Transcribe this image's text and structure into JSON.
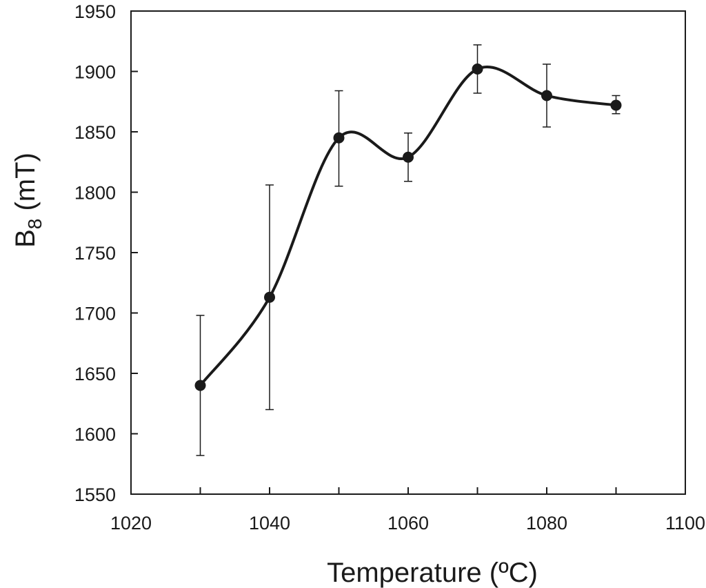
{
  "chart_data": {
    "type": "line",
    "title": "",
    "xlabel": "Temperature (ºC)",
    "ylabel_main": "B",
    "ylabel_sub": "8",
    "ylabel_unit": " (mT)",
    "xlim": [
      1020,
      1100
    ],
    "ylim": [
      1550,
      1950
    ],
    "xticks": [
      1020,
      1040,
      1060,
      1080,
      1100
    ],
    "yticks": [
      1550,
      1600,
      1650,
      1700,
      1750,
      1800,
      1850,
      1900,
      1950
    ],
    "xtick_labels": [
      "1020",
      "1040",
      "1060",
      "1080",
      "1100"
    ],
    "ytick_labels": [
      "1550",
      "1600",
      "1650",
      "1700",
      "1750",
      "1800",
      "1850",
      "1900",
      "1950"
    ],
    "grid": false,
    "smooth": true,
    "series": [
      {
        "x": [
          1030,
          1040,
          1050,
          1060,
          1070,
          1080,
          1090
        ],
        "y": [
          1640,
          1713,
          1845,
          1829,
          1902,
          1880,
          1872
        ],
        "err_low": [
          1582,
          1620,
          1805,
          1809,
          1882,
          1854,
          1865
        ],
        "err_high": [
          1698,
          1806,
          1884,
          1849,
          1922,
          1906,
          1880
        ]
      }
    ],
    "color": "#1a1a1a"
  }
}
